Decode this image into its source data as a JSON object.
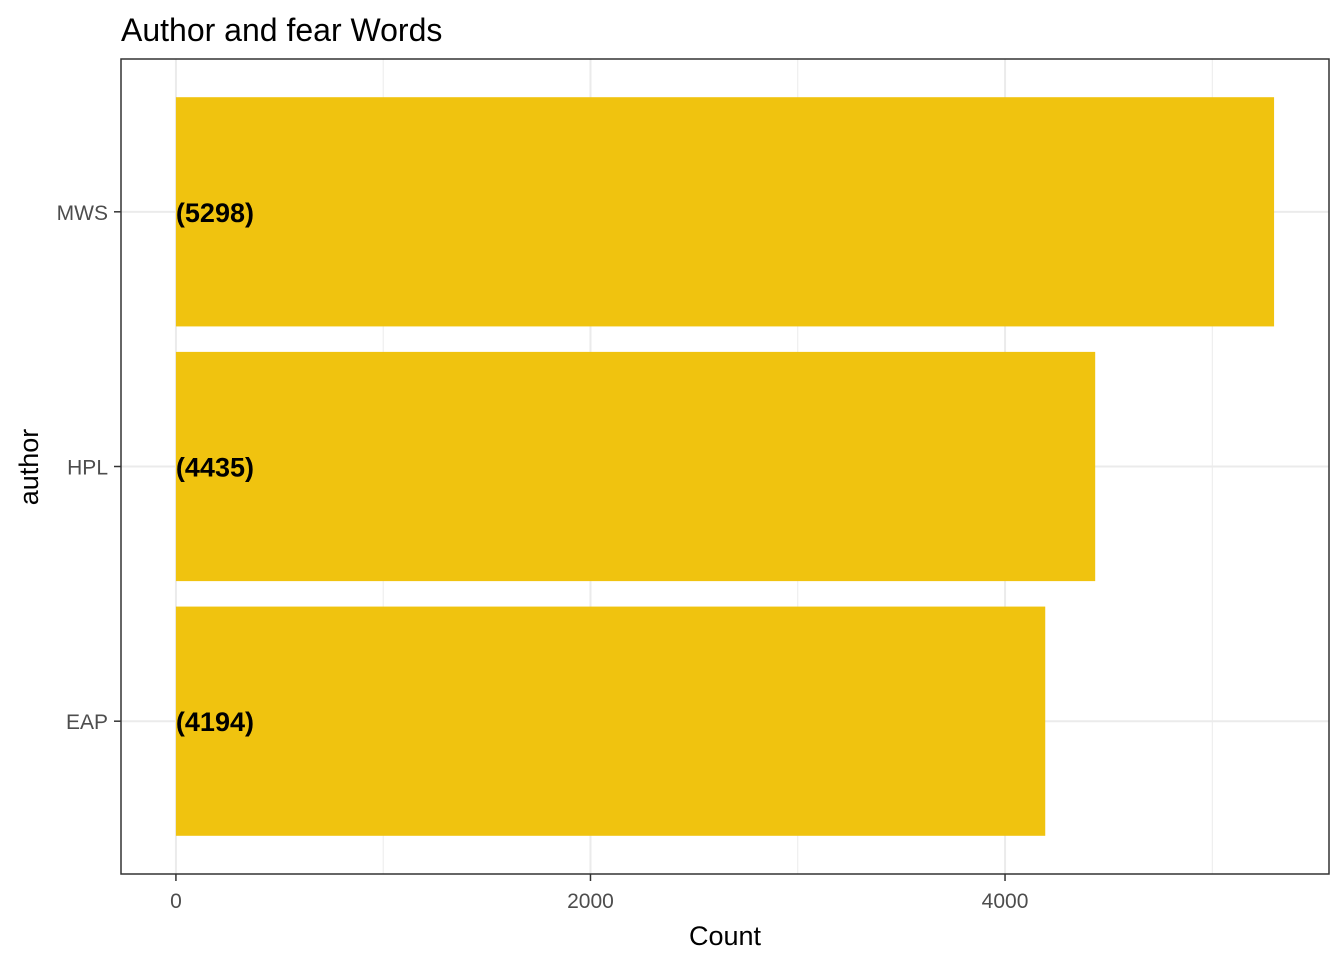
{
  "chart_data": {
    "type": "bar",
    "orientation": "horizontal",
    "title": "Author and fear Words",
    "xlabel": "Count",
    "ylabel": "author",
    "categories": [
      "EAP",
      "HPL",
      "MWS"
    ],
    "values": [
      4194,
      4435,
      5298
    ],
    "data_labels": [
      "(4194)",
      "(4435)",
      "(5298)"
    ],
    "xlim": [
      -265,
      5563
    ],
    "x_ticks": [
      0,
      2000,
      4000
    ],
    "x_tick_labels": [
      "0",
      "2000",
      "4000"
    ],
    "x_minor_ticks": [
      1000,
      3000,
      5000
    ],
    "grid": true,
    "legend": "none",
    "colors": {
      "bar": "#F0C30F",
      "grid": "#EBEBEB",
      "panel_border": "#333333",
      "tick_text": "#4D4D4D"
    }
  }
}
